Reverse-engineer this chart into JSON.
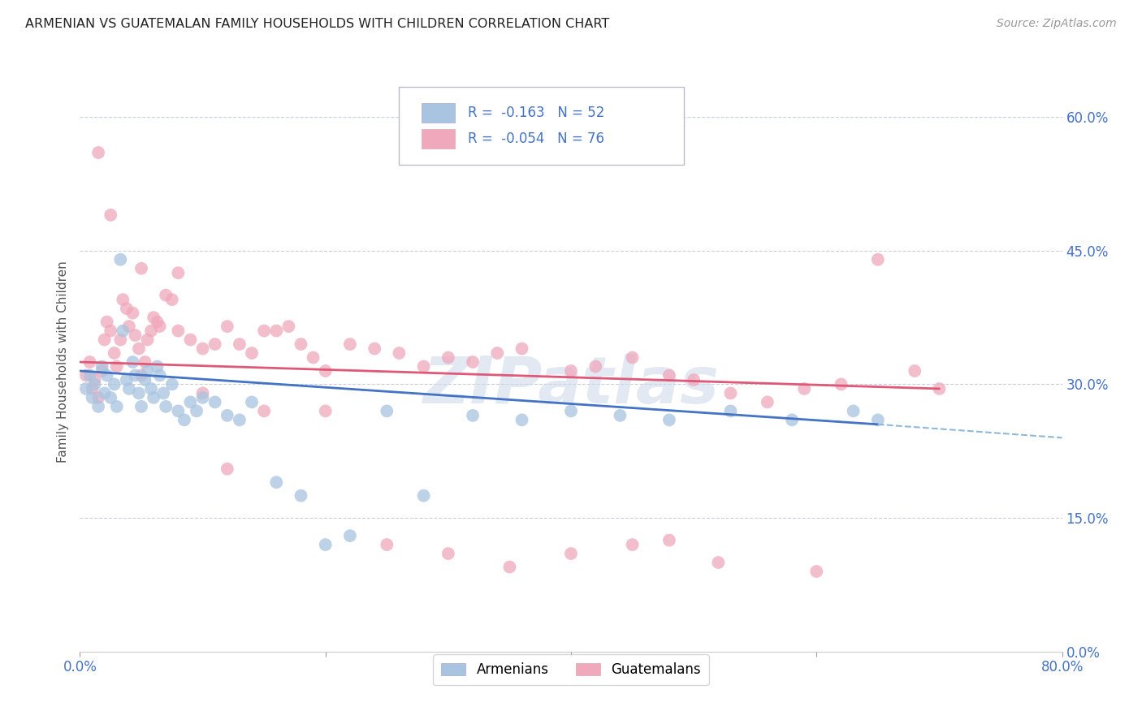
{
  "title": "ARMENIAN VS GUATEMALAN FAMILY HOUSEHOLDS WITH CHILDREN CORRELATION CHART",
  "source": "Source: ZipAtlas.com",
  "ylabel": "Family Households with Children",
  "ytick_labels": [
    "0.0%",
    "15.0%",
    "30.0%",
    "45.0%",
    "60.0%"
  ],
  "ytick_values": [
    0.0,
    0.15,
    0.3,
    0.45,
    0.6
  ],
  "xlim": [
    0.0,
    0.8
  ],
  "ylim": [
    0.0,
    0.65
  ],
  "armenian_color": "#a8c4e0",
  "guatemalan_color": "#f0a8bc",
  "armenian_line_color": "#4472c4",
  "guatemalan_line_color": "#e05878",
  "armenian_line_dashed_color": "#90b8d8",
  "watermark": "ZIPatlas",
  "legend_label_armenian": "R =  -0.163   N = 52",
  "legend_label_guatemalan": "R =  -0.054   N = 76",
  "legend_text_color": "#4472c4",
  "armenian_x": [
    0.005,
    0.008,
    0.01,
    0.012,
    0.015,
    0.018,
    0.02,
    0.022,
    0.025,
    0.028,
    0.03,
    0.033,
    0.035,
    0.038,
    0.04,
    0.043,
    0.045,
    0.048,
    0.05,
    0.053,
    0.055,
    0.058,
    0.06,
    0.063,
    0.065,
    0.068,
    0.07,
    0.075,
    0.08,
    0.085,
    0.09,
    0.095,
    0.1,
    0.11,
    0.12,
    0.13,
    0.14,
    0.16,
    0.18,
    0.2,
    0.22,
    0.25,
    0.28,
    0.32,
    0.36,
    0.4,
    0.44,
    0.48,
    0.53,
    0.58,
    0.63,
    0.65
  ],
  "armenian_y": [
    0.295,
    0.31,
    0.285,
    0.3,
    0.275,
    0.32,
    0.29,
    0.31,
    0.285,
    0.3,
    0.275,
    0.44,
    0.36,
    0.305,
    0.295,
    0.325,
    0.31,
    0.29,
    0.275,
    0.305,
    0.315,
    0.295,
    0.285,
    0.32,
    0.31,
    0.29,
    0.275,
    0.3,
    0.27,
    0.26,
    0.28,
    0.27,
    0.285,
    0.28,
    0.265,
    0.26,
    0.28,
    0.19,
    0.175,
    0.12,
    0.13,
    0.27,
    0.175,
    0.265,
    0.26,
    0.27,
    0.265,
    0.26,
    0.27,
    0.26,
    0.27,
    0.26
  ],
  "guatemalan_x": [
    0.005,
    0.008,
    0.01,
    0.012,
    0.015,
    0.018,
    0.02,
    0.022,
    0.025,
    0.028,
    0.03,
    0.033,
    0.035,
    0.038,
    0.04,
    0.043,
    0.045,
    0.048,
    0.05,
    0.053,
    0.055,
    0.058,
    0.06,
    0.063,
    0.065,
    0.07,
    0.075,
    0.08,
    0.09,
    0.1,
    0.11,
    0.12,
    0.13,
    0.14,
    0.15,
    0.16,
    0.17,
    0.18,
    0.19,
    0.2,
    0.22,
    0.24,
    0.26,
    0.28,
    0.3,
    0.32,
    0.34,
    0.36,
    0.4,
    0.42,
    0.45,
    0.48,
    0.5,
    0.53,
    0.56,
    0.59,
    0.62,
    0.65,
    0.68,
    0.7,
    0.015,
    0.025,
    0.05,
    0.08,
    0.1,
    0.12,
    0.15,
    0.2,
    0.25,
    0.3,
    0.35,
    0.4,
    0.45,
    0.48,
    0.52,
    0.6
  ],
  "guatemalan_y": [
    0.31,
    0.325,
    0.295,
    0.305,
    0.285,
    0.315,
    0.35,
    0.37,
    0.36,
    0.335,
    0.32,
    0.35,
    0.395,
    0.385,
    0.365,
    0.38,
    0.355,
    0.34,
    0.31,
    0.325,
    0.35,
    0.36,
    0.375,
    0.37,
    0.365,
    0.4,
    0.395,
    0.36,
    0.35,
    0.34,
    0.345,
    0.365,
    0.345,
    0.335,
    0.36,
    0.36,
    0.365,
    0.345,
    0.33,
    0.315,
    0.345,
    0.34,
    0.335,
    0.32,
    0.33,
    0.325,
    0.335,
    0.34,
    0.315,
    0.32,
    0.33,
    0.31,
    0.305,
    0.29,
    0.28,
    0.295,
    0.3,
    0.44,
    0.315,
    0.295,
    0.56,
    0.49,
    0.43,
    0.425,
    0.29,
    0.205,
    0.27,
    0.27,
    0.12,
    0.11,
    0.095,
    0.11,
    0.12,
    0.125,
    0.1,
    0.09
  ]
}
